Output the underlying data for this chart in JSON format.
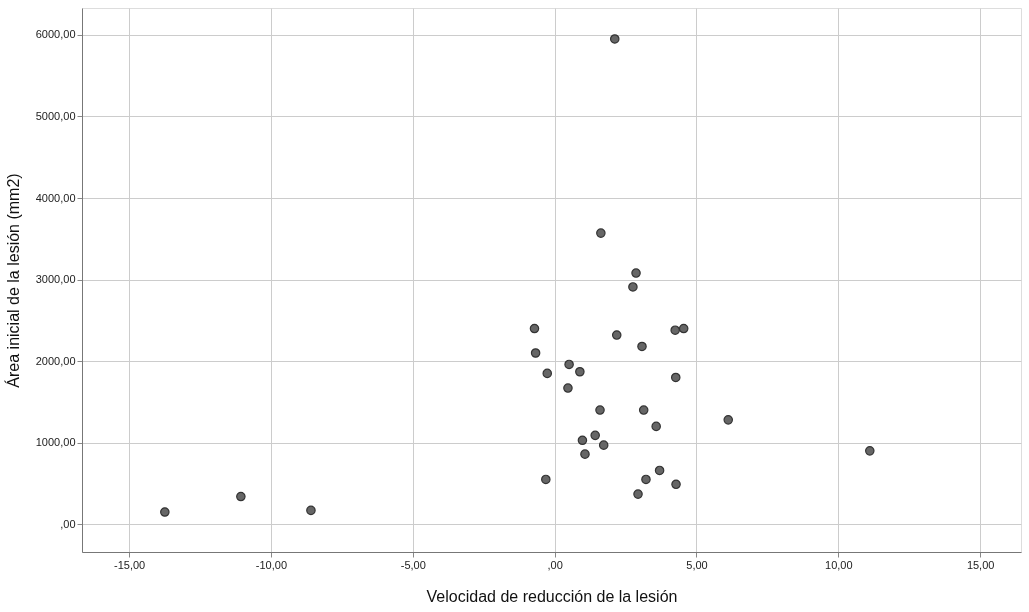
{
  "chart_data": {
    "type": "scatter",
    "xlabel": "Velocidad de reducción de la lesión",
    "ylabel": "Área inicial de la lesión (mm2)",
    "x": [
      2.12,
      1.63,
      2.87,
      2.76,
      -0.71,
      2.19,
      4.25,
      4.55,
      -0.67,
      3.08,
      0.51,
      0.89,
      -0.26,
      0.47,
      4.27,
      1.6,
      3.14,
      3.58,
      6.12,
      1.43,
      0.98,
      1.73,
      1.07,
      -0.31,
      3.7,
      3.22,
      4.28,
      2.94,
      -13.74,
      -11.06,
      -8.59,
      11.11
    ],
    "series": [
      {
        "color": "#666666",
        "values": [
          5950,
          3570,
          3080,
          2910,
          2400,
          2320,
          2380,
          2400,
          2100,
          2180,
          1960,
          1870,
          1850,
          1670,
          1800,
          1400,
          1400,
          1200,
          1280,
          1090,
          1030,
          970,
          860,
          550,
          660,
          550,
          490,
          370,
          150,
          340,
          170,
          900
        ]
      }
    ],
    "xlim": [
      -16.66,
      16.44
    ],
    "ylim": [
      -340,
      6330
    ],
    "xticks": [
      {
        "value": -15,
        "label": "-15,00"
      },
      {
        "value": -10,
        "label": "-10,00"
      },
      {
        "value": -5,
        "label": "-5,00"
      },
      {
        "value": 0,
        "label": ",00"
      },
      {
        "value": 5,
        "label": "5,00"
      },
      {
        "value": 10,
        "label": "10,00"
      },
      {
        "value": 15,
        "label": "15,00"
      }
    ],
    "yticks": [
      {
        "value": 0,
        "label": ",00"
      },
      {
        "value": 1000,
        "label": "1000,00"
      },
      {
        "value": 2000,
        "label": "2000,00"
      },
      {
        "value": 3000,
        "label": "3000,00"
      },
      {
        "value": 4000,
        "label": "4000,00"
      },
      {
        "value": 5000,
        "label": "5000,00"
      },
      {
        "value": 6000,
        "label": "6000,00"
      }
    ],
    "grid": true,
    "marker": "circle"
  }
}
